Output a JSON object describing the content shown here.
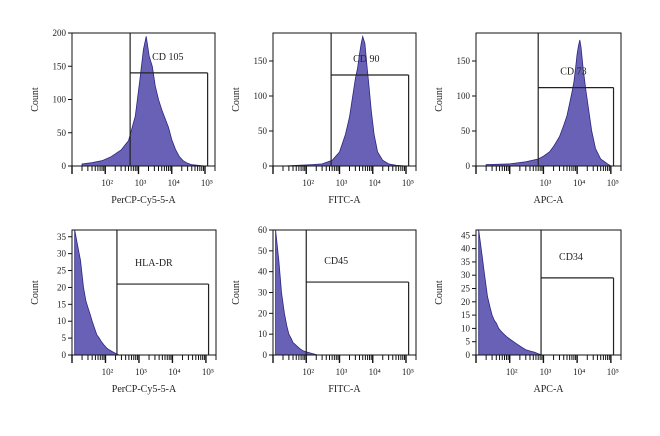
{
  "colors": {
    "fill": "#5b54b0",
    "edge": "#2c2680",
    "frame": "#111111",
    "gate": "#222222"
  },
  "chart_data": [
    {
      "type": "histogram",
      "marker": "CD 105",
      "xlabel": "PerCP-Cy5-5-A",
      "ylabel": "Count",
      "x_scale": "log",
      "xlim": [
        10,
        200000
      ],
      "ylim": [
        0,
        200
      ],
      "x_ticks": [
        100,
        1000,
        10000,
        100000
      ],
      "x_tick_labels": [
        "10²",
        "10³",
        "10⁴",
        "10⁵"
      ],
      "y_ticks": [
        0,
        50,
        100,
        150,
        200
      ],
      "gate_x": [
        560,
        120000
      ],
      "gate_y": 140,
      "x": [
        20,
        40,
        80,
        150,
        300,
        500,
        800,
        1100,
        1400,
        1700,
        2100,
        2600,
        3200,
        4000,
        5000,
        6500,
        8000,
        10000,
        13000,
        17000,
        22000,
        30000,
        40000,
        60000,
        100000
      ],
      "counts": [
        3,
        5,
        8,
        14,
        24,
        38,
        75,
        130,
        175,
        195,
        165,
        150,
        120,
        100,
        85,
        70,
        58,
        40,
        25,
        14,
        8,
        4,
        2,
        1,
        0
      ]
    },
    {
      "type": "histogram",
      "marker": "CD 90",
      "xlabel": "FITC-A",
      "ylabel": "Count",
      "x_scale": "log",
      "xlim": [
        10,
        200000
      ],
      "ylim": [
        0,
        190
      ],
      "x_ticks": [
        100,
        1000,
        10000,
        100000
      ],
      "x_tick_labels": [
        "10²",
        "10³",
        "10⁴",
        "10⁵"
      ],
      "y_ticks": [
        0,
        50,
        100,
        150
      ],
      "gate_x": [
        560,
        120000
      ],
      "gate_y": 130,
      "x": [
        20,
        60,
        150,
        300,
        600,
        1000,
        1500,
        2000,
        2500,
        3000,
        3500,
        4000,
        4500,
        5000,
        5800,
        6500,
        7500,
        9000,
        11000,
        14000,
        20000,
        30000,
        50000,
        100000
      ],
      "counts": [
        0,
        1,
        2,
        3,
        8,
        20,
        45,
        70,
        100,
        125,
        140,
        160,
        175,
        185,
        175,
        150,
        120,
        80,
        45,
        20,
        8,
        3,
        1,
        0
      ]
    },
    {
      "type": "histogram",
      "marker": "CD 73",
      "xlabel": "APC-A",
      "ylabel": "Count",
      "x_scale": "log",
      "xlim": [
        10,
        200000
      ],
      "ylim": [
        0,
        190
      ],
      "x_ticks": [
        1000,
        10000,
        100000
      ],
      "x_tick_labels": [
        "10³",
        "10⁴",
        "10⁵"
      ],
      "y_ticks": [
        0,
        50,
        100,
        150
      ],
      "gate_x": [
        700,
        120000
      ],
      "gate_y": 112,
      "x": [
        20,
        100,
        300,
        700,
        1000,
        1500,
        2000,
        3000,
        4000,
        5000,
        6000,
        7000,
        8000,
        9000,
        10000,
        11000,
        12000,
        13000,
        15000,
        18000,
        22000,
        27000,
        35000,
        50000,
        80000,
        100000
      ],
      "counts": [
        2,
        3,
        6,
        10,
        14,
        20,
        28,
        42,
        58,
        72,
        90,
        105,
        120,
        140,
        160,
        172,
        180,
        170,
        140,
        110,
        80,
        50,
        25,
        10,
        3,
        0
      ]
    },
    {
      "type": "histogram",
      "marker": "HLA-DR",
      "xlabel": "PerCP-Cy5-5-A",
      "ylabel": "Count",
      "x_scale": "log",
      "xlim": [
        10,
        200000
      ],
      "ylim": [
        0,
        37
      ],
      "x_ticks": [
        100,
        1000,
        10000,
        100000
      ],
      "x_tick_labels": [
        "10²",
        "10³",
        "10⁴",
        "10⁵"
      ],
      "y_ticks": [
        0,
        5,
        10,
        15,
        20,
        25,
        30,
        35
      ],
      "gate_x": [
        220,
        120000
      ],
      "gate_y": 21,
      "x": [
        12,
        15,
        18,
        22,
        26,
        30,
        35,
        40,
        47,
        55,
        65,
        75,
        90,
        110,
        130,
        160,
        200,
        250
      ],
      "counts": [
        37,
        32,
        28,
        20,
        16,
        14,
        12,
        10,
        8,
        6,
        5,
        4,
        3,
        2,
        1.5,
        1,
        0.5,
        0
      ]
    },
    {
      "type": "histogram",
      "marker": "CD45",
      "xlabel": "FITC-A",
      "ylabel": "Count",
      "x_scale": "log",
      "xlim": [
        10,
        200000
      ],
      "ylim": [
        0,
        60
      ],
      "x_ticks": [
        100,
        1000,
        10000,
        100000
      ],
      "x_tick_labels": [
        "10²",
        "10³",
        "10⁴",
        "10⁵"
      ],
      "y_ticks": [
        0,
        10,
        20,
        30,
        40,
        50,
        60
      ],
      "gate_x": [
        100,
        120000
      ],
      "gate_y": 35,
      "x": [
        12,
        15,
        18,
        22,
        26,
        30,
        35,
        40,
        47,
        55,
        65,
        80,
        100,
        130,
        170,
        220
      ],
      "counts": [
        60,
        45,
        30,
        20,
        14,
        10,
        8,
        6,
        5,
        4,
        3,
        2,
        1.5,
        1,
        0.5,
        0
      ]
    },
    {
      "type": "histogram",
      "marker": "CD34",
      "xlabel": "APC-A",
      "ylabel": "Count",
      "x_scale": "log",
      "xlim": [
        10,
        200000
      ],
      "ylim": [
        0,
        47
      ],
      "x_ticks": [
        100,
        1000,
        10000,
        100000
      ],
      "x_tick_labels": [
        "10²",
        "10³",
        "10⁴",
        "10⁵"
      ],
      "y_ticks": [
        0,
        5,
        10,
        15,
        20,
        25,
        30,
        35,
        40,
        45
      ],
      "gate_x": [
        850,
        120000
      ],
      "gate_y": 29,
      "x": [
        12,
        15,
        18,
        22,
        26,
        30,
        35,
        40,
        47,
        55,
        65,
        80,
        100,
        130,
        170,
        220,
        300,
        400,
        550,
        700,
        900
      ],
      "counts": [
        47,
        38,
        30,
        22,
        18,
        15,
        13,
        12,
        10,
        9,
        8,
        7,
        6,
        5,
        4,
        3,
        2,
        1.5,
        1,
        0.5,
        0
      ]
    }
  ]
}
